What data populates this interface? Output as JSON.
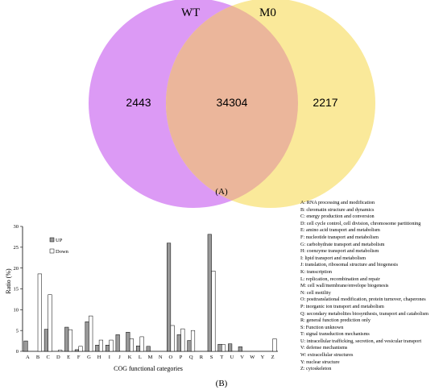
{
  "figure": {
    "panel_a_label": "(A)",
    "panel_b_label": "(B)"
  },
  "venn": {
    "sets": [
      {
        "name": "WT",
        "only": "2443",
        "color": "#dc9af5"
      },
      {
        "name": "M0",
        "only": "2217",
        "color": "#fae99a"
      }
    ],
    "intersection": "34304",
    "intersection_color": "#ebb69b"
  },
  "chart_data": {
    "type": "bar",
    "title": "",
    "xlabel": "COG functional categories",
    "ylabel": "Ratio (%)",
    "ylim": [
      0,
      30
    ],
    "yticks": [
      0,
      5,
      10,
      15,
      20,
      25,
      30
    ],
    "grid": false,
    "legend_position": "top-left",
    "categories": [
      "A",
      "B",
      "C",
      "D",
      "E",
      "F",
      "G",
      "H",
      "I",
      "J",
      "K",
      "L",
      "M",
      "N",
      "O",
      "P",
      "Q",
      "R",
      "S",
      "T",
      "U",
      "V",
      "W",
      "Y",
      "Z"
    ],
    "series": [
      {
        "name": "UP",
        "color": "#999999",
        "values": [
          2.5,
          0,
          5.3,
          0,
          5.8,
          0.4,
          7.1,
          1.5,
          1.5,
          4.0,
          4.6,
          1.3,
          1.2,
          0,
          26.0,
          4.0,
          2.6,
          0,
          28.1,
          1.7,
          1.8,
          1.1,
          0,
          0,
          0
        ]
      },
      {
        "name": "Down",
        "color": "#ffffff",
        "values": [
          0,
          18.6,
          13.6,
          0.3,
          5.2,
          1.2,
          8.5,
          2.7,
          2.7,
          0,
          3.0,
          3.5,
          0,
          0,
          6.2,
          5.4,
          5.0,
          0,
          19.3,
          1.6,
          0,
          0,
          0,
          0,
          3.0
        ]
      }
    ],
    "category_descriptions": [
      "A: RNA processing and modification",
      "B: chromatin structure and dynamics",
      "C: energy production and conversion",
      "D: cell cycle control, cell division, chromosome partitioning",
      "E: amino acid transport and metabolism",
      "F: nucleotide transport and metabolism",
      "G: carbohydrate transport and metabolism",
      "H: coenzyme transport and metabolism",
      "I: lipid transport and metabolism",
      "J: translation, ribosomal structure and biogenesis",
      "K: transcription",
      "L: replication, recombination and repair",
      "M: cell wall/membrane/envelope biogenesis",
      "N: cell motility",
      "O: posttranslational modification, protein turnover, chaperones",
      "P: inorganic ion transport and metabolism",
      "Q: secondary metabolites biosynthesis, transport and catabolism",
      "R: general function prediction only",
      "S: Function unknown",
      "T: signal transduction mechanisms",
      "U: intracellular trafficking, secretion, and vesicular transport",
      "V: defense mechanisms",
      "W: extracellular structures",
      "Y: nuclear structure",
      "Z: cytoskeleton"
    ]
  }
}
